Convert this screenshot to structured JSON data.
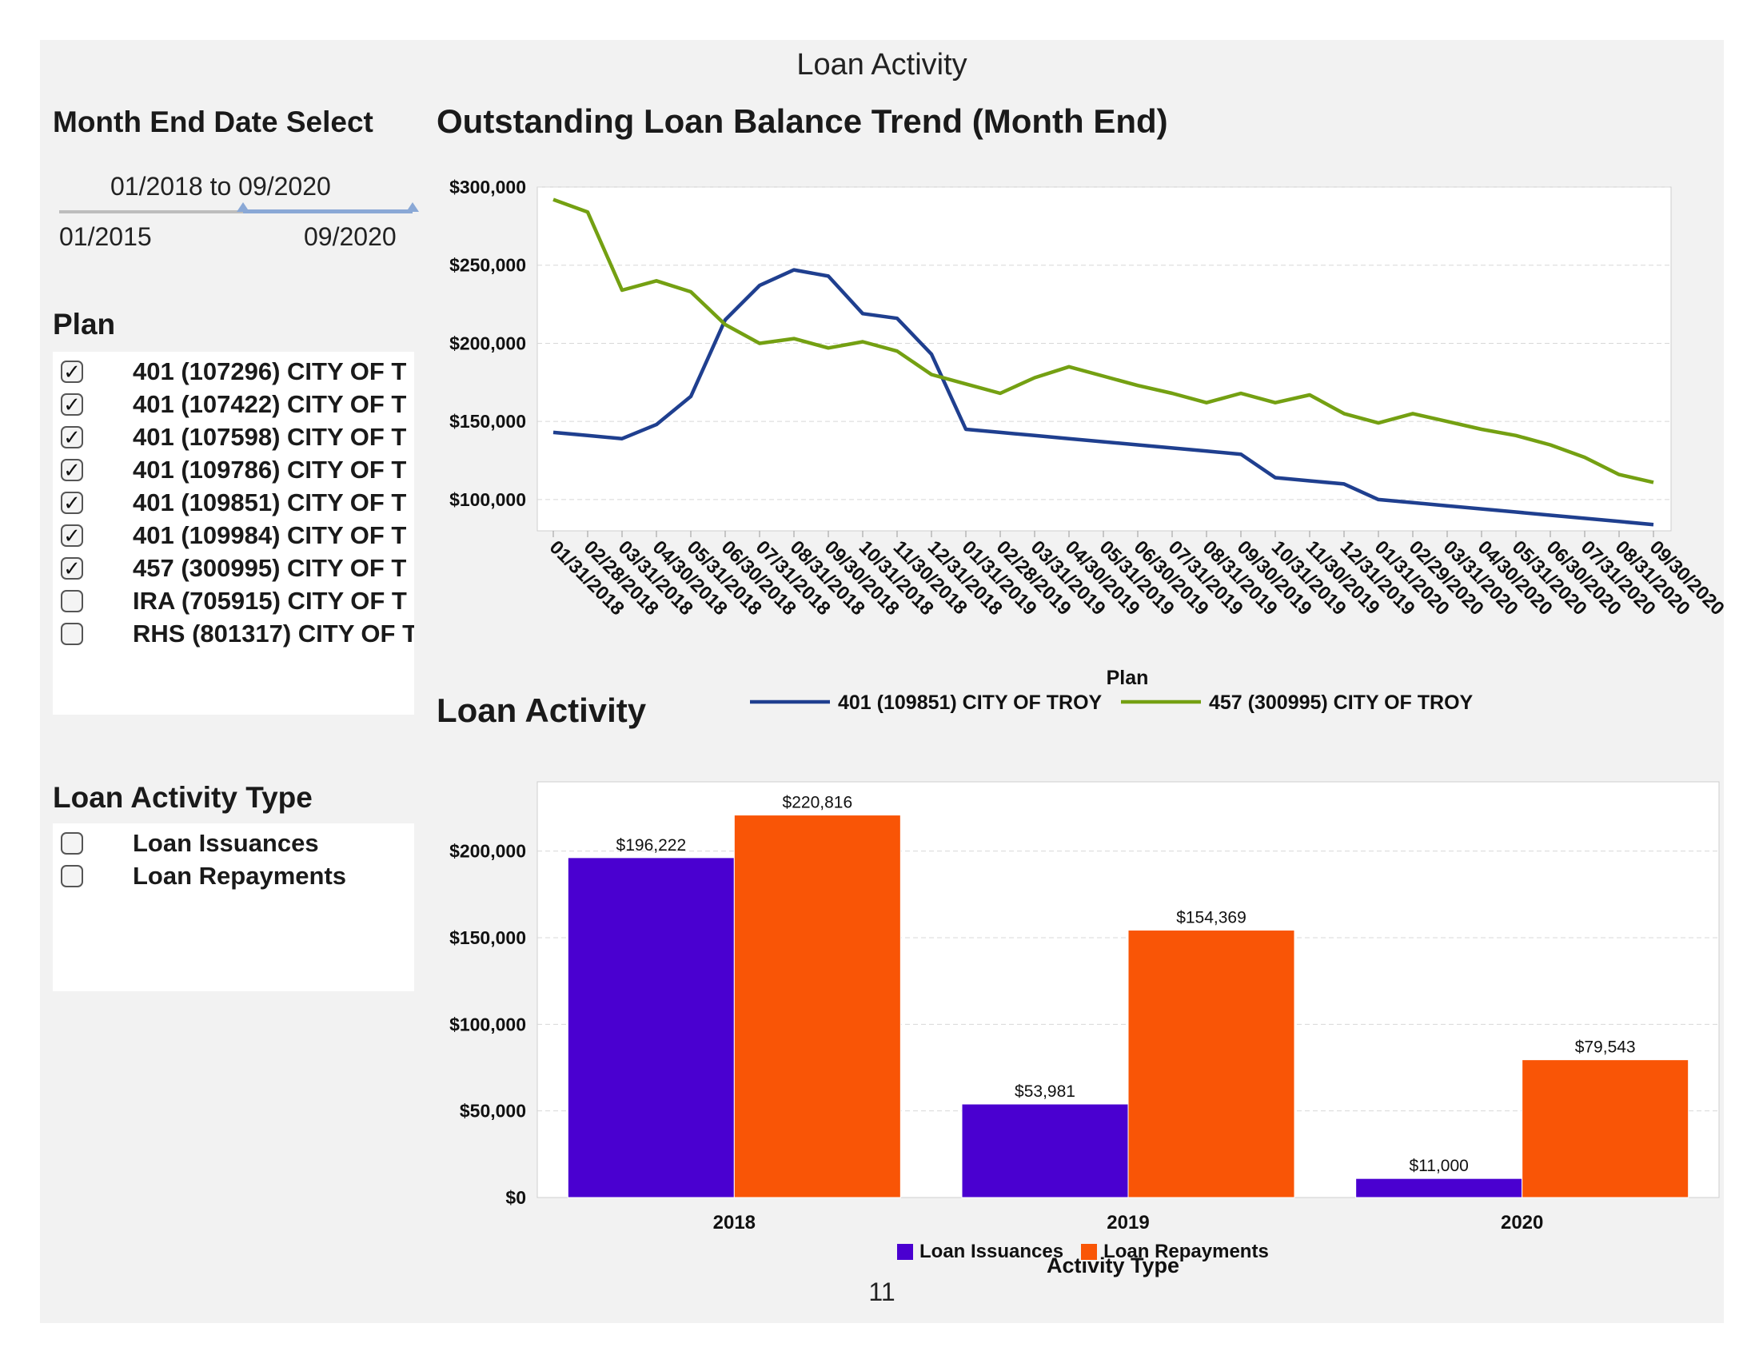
{
  "page": {
    "title": "Loan Activity",
    "page_number": "11"
  },
  "date_select": {
    "title": "Month End Date Select",
    "range_label": "01/2018 to 09/2020",
    "min_label": "01/2015",
    "max_label": "09/2020"
  },
  "plan_filter": {
    "title": "Plan",
    "items": [
      {
        "label": "401 (107296) CITY OF T",
        "checked": true
      },
      {
        "label": "401 (107422) CITY OF T",
        "checked": true
      },
      {
        "label": "401 (107598) CITY OF T",
        "checked": true
      },
      {
        "label": "401 (109786) CITY OF T",
        "checked": true
      },
      {
        "label": "401 (109851) CITY OF T",
        "checked": true
      },
      {
        "label": "401 (109984) CITY OF T",
        "checked": true
      },
      {
        "label": "457 (300995) CITY OF T",
        "checked": true
      },
      {
        "label": "IRA (705915) CITY OF T",
        "checked": false
      },
      {
        "label": "RHS (801317) CITY OF T",
        "checked": false
      }
    ]
  },
  "activity_filter": {
    "title": "Loan Activity Type",
    "items": [
      {
        "label": "Loan Issuances",
        "checked": false
      },
      {
        "label": "Loan Repayments",
        "checked": false
      }
    ]
  },
  "icons": {
    "checked": "check-icon",
    "unchecked": "empty-box-icon",
    "slider_handle": "triangle-up-icon"
  },
  "chart_data": [
    {
      "type": "line",
      "title": "Outstanding Loan Balance Trend (Month End)",
      "legend_title": "Plan",
      "legend_position": "bottom",
      "grid": true,
      "ylim": [
        80000,
        300000
      ],
      "y_ticks": [
        {
          "value": 100000,
          "label": "$100,000"
        },
        {
          "value": 150000,
          "label": "$150,000"
        },
        {
          "value": 200000,
          "label": "$200,000"
        },
        {
          "value": 250000,
          "label": "$250,000"
        },
        {
          "value": 300000,
          "label": "$300,000"
        }
      ],
      "x": [
        "01/31/2018",
        "02/28/2018",
        "03/31/2018",
        "04/30/2018",
        "05/31/2018",
        "06/30/2018",
        "07/31/2018",
        "08/31/2018",
        "09/30/2018",
        "10/31/2018",
        "11/30/2018",
        "12/31/2018",
        "01/31/2019",
        "02/28/2019",
        "03/31/2019",
        "04/30/2019",
        "05/31/2019",
        "06/30/2019",
        "07/31/2019",
        "08/31/2019",
        "09/30/2019",
        "10/31/2019",
        "11/30/2019",
        "12/31/2019",
        "01/31/2020",
        "02/29/2020",
        "03/31/2020",
        "04/30/2020",
        "05/31/2020",
        "06/30/2020",
        "07/31/2020",
        "08/31/2020",
        "09/30/2020"
      ],
      "series": [
        {
          "name": "401 (109851) CITY OF TROY",
          "color": "#1f3f8f",
          "values": [
            143000,
            141000,
            139000,
            148000,
            166000,
            215000,
            237000,
            247000,
            243000,
            219000,
            216000,
            193000,
            145000,
            143000,
            141000,
            139000,
            137000,
            135000,
            133000,
            131000,
            129000,
            114000,
            112000,
            110000,
            100000,
            98000,
            96000,
            94000,
            92000,
            90000,
            88000,
            86000,
            84000
          ]
        },
        {
          "name": "457 (300995) CITY OF TROY",
          "color": "#74a012",
          "values": [
            292000,
            284000,
            234000,
            240000,
            233000,
            212000,
            200000,
            203000,
            197000,
            201000,
            195000,
            180000,
            174000,
            168000,
            178000,
            185000,
            179000,
            173000,
            168000,
            162000,
            168000,
            162000,
            167000,
            155000,
            149000,
            155000,
            150000,
            145000,
            141000,
            135000,
            127000,
            116000,
            111000
          ]
        }
      ]
    },
    {
      "type": "bar",
      "title": "Loan Activity",
      "legend_title": "Activity  Type",
      "legend_position": "bottom",
      "grid": true,
      "ylim": [
        0,
        240000
      ],
      "y_ticks": [
        {
          "value": 0,
          "label": "$0"
        },
        {
          "value": 50000,
          "label": "$50,000"
        },
        {
          "value": 100000,
          "label": "$100,000"
        },
        {
          "value": 150000,
          "label": "$150,000"
        },
        {
          "value": 200000,
          "label": "$200,000"
        }
      ],
      "categories": [
        "2018",
        "2019",
        "2020"
      ],
      "series": [
        {
          "name": "Loan Issuances",
          "color": "#4a00d0",
          "values": [
            196222,
            53981,
            11000
          ],
          "labels": [
            "$196,222",
            "$53,981",
            "$11,000"
          ]
        },
        {
          "name": "Loan Repayments",
          "color": "#f95506",
          "values": [
            220816,
            154369,
            79543
          ],
          "labels": [
            "$220,816",
            "$154,369",
            "$79,543"
          ]
        }
      ]
    }
  ]
}
